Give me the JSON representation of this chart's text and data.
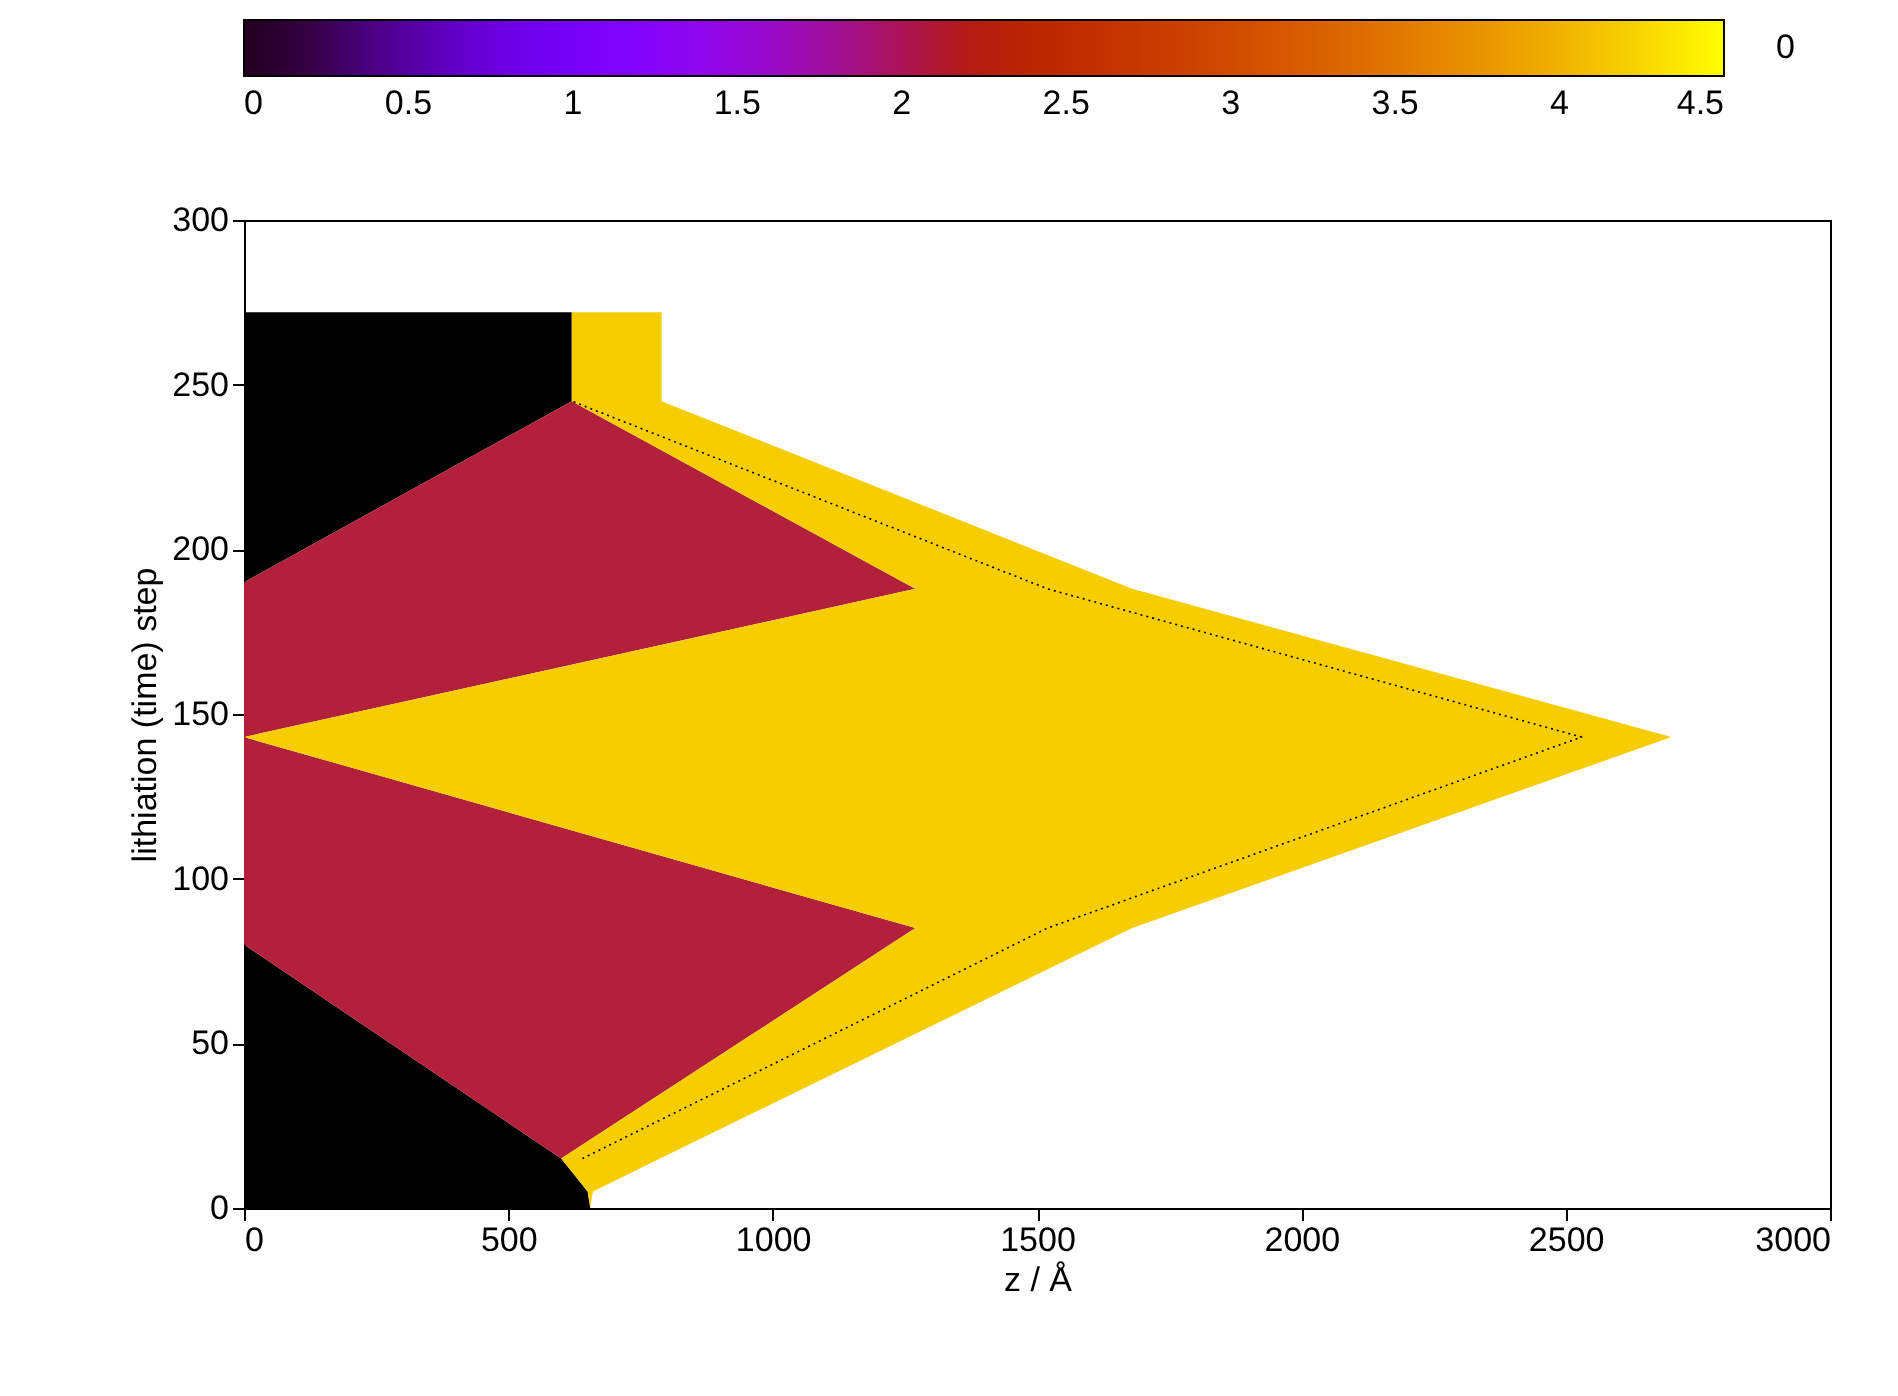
{
  "chart_data": {
    "type": "area",
    "orientation": "horizontal",
    "stacked": true,
    "xlabel": "z / Å",
    "ylabel": "lithiation (time) step",
    "clabel": "0",
    "x": [
      0,
      5,
      15,
      80,
      85,
      143,
      188,
      190,
      245,
      272
    ],
    "series": [
      {
        "color": "#000000",
        "values": [
          655,
          650,
          600,
          0,
          0,
          0,
          0,
          0,
          620,
          620
        ]
      },
      {
        "color": "#b2203c",
        "values": [
          0,
          0,
          0,
          1222,
          1270,
          0,
          1270,
          1247,
          0,
          0
        ]
      },
      {
        "color": "#f5cd00",
        "values": [
          0,
          10,
          187,
          394,
          410,
          2700,
          410,
          402,
          170,
          170
        ]
      },
      {
        "type": "line",
        "color": "#000000",
        "line_style": "dotted",
        "x": [
          15,
          85,
          143,
          188,
          245
        ],
        "values": [
          640,
          1520,
          2530,
          1520,
          620
        ]
      }
    ],
    "xlim": [
      0,
      3000
    ],
    "xticks": [
      0,
      500,
      1000,
      1500,
      2000,
      2500,
      3000
    ],
    "ylim": [
      0,
      300
    ],
    "yticks": [
      0,
      50,
      100,
      150,
      200,
      250,
      300
    ],
    "clim": [
      0,
      4.5
    ],
    "cticks": [
      0,
      0.5,
      1,
      1.5,
      2,
      2.5,
      3,
      3.5,
      4,
      4.5
    ],
    "grid": false
  }
}
